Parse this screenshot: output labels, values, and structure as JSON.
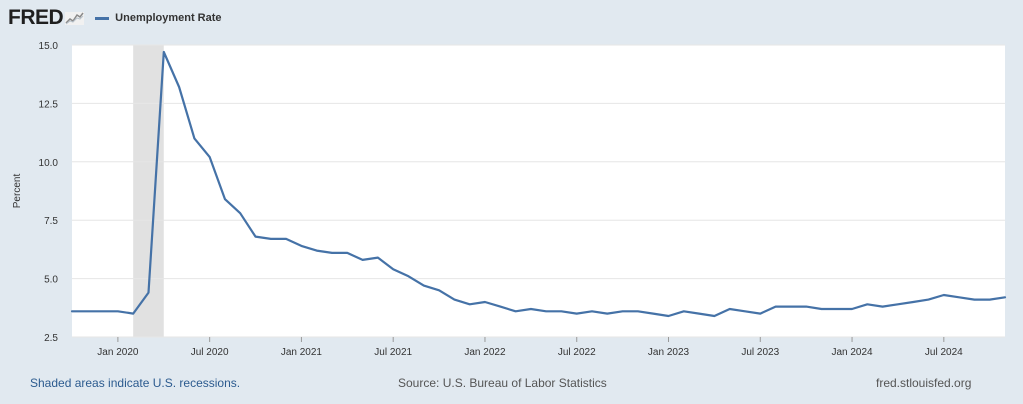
{
  "logo": {
    "text": "FRED"
  },
  "colors": {
    "series": "#4572a7",
    "recession": "#e1e1e1",
    "background": "#e1e9f0",
    "plot": "#ffffff"
  },
  "chart_data": {
    "type": "line",
    "title": "",
    "series": [
      {
        "name": "Unemployment Rate",
        "values": [
          3.6,
          3.6,
          3.6,
          3.6,
          3.5,
          4.4,
          14.7,
          13.2,
          11.0,
          10.2,
          8.4,
          7.8,
          6.8,
          6.7,
          6.7,
          6.4,
          6.2,
          6.1,
          6.1,
          5.8,
          5.9,
          5.4,
          5.1,
          4.7,
          4.5,
          4.1,
          3.9,
          4.0,
          3.8,
          3.6,
          3.7,
          3.6,
          3.6,
          3.5,
          3.6,
          3.5,
          3.6,
          3.6,
          3.5,
          3.4,
          3.6,
          3.5,
          3.4,
          3.7,
          3.6,
          3.5,
          3.8,
          3.8,
          3.8,
          3.7,
          3.7,
          3.7,
          3.9,
          3.8,
          3.9,
          4.0,
          4.1,
          4.3,
          4.2,
          4.1,
          4.1,
          4.2
        ]
      }
    ],
    "x_start": "2019-10",
    "x_ticks": [
      {
        "label": "Jan 2020",
        "index": 3
      },
      {
        "label": "Jul 2020",
        "index": 9
      },
      {
        "label": "Jan 2021",
        "index": 15
      },
      {
        "label": "Jul 2021",
        "index": 21
      },
      {
        "label": "Jan 2022",
        "index": 27
      },
      {
        "label": "Jul 2022",
        "index": 33
      },
      {
        "label": "Jan 2023",
        "index": 39
      },
      {
        "label": "Jul 2023",
        "index": 45
      },
      {
        "label": "Jan 2024",
        "index": 51
      },
      {
        "label": "Jul 2024",
        "index": 57
      }
    ],
    "y_ticks": [
      "2.5",
      "5.0",
      "7.5",
      "10.0",
      "12.5",
      "15.0"
    ],
    "ylim": [
      2.5,
      15.0
    ],
    "ylabel": "Percent",
    "xlabel": "",
    "grid": true,
    "recession": {
      "start_index": 4,
      "end_index": 6
    }
  },
  "footer": {
    "note": "Shaded areas indicate U.S. recessions.",
    "source": "Source: U.S. Bureau of Labor Statistics",
    "site": "fred.stlouisfed.org"
  }
}
